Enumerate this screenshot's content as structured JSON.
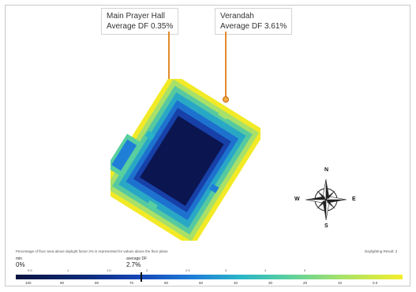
{
  "callouts": {
    "main_hall": {
      "name": "Main Prayer Hall",
      "value": "Average DF 0.35%"
    },
    "veranda": {
      "name": "Verandah",
      "value": "Average DF 3.61%"
    }
  },
  "compass": {
    "n": "N",
    "s": "S",
    "e": "E",
    "w": "W"
  },
  "footer": {
    "caption_left": "Percentage of floor area above daylight factor 2% is represented for values above the floor plane",
    "caption_right": "Daylighting Result: 2",
    "min_label": "min",
    "min_value": "0%",
    "avg_label": "average DF",
    "avg_value": "2.7%"
  },
  "legend": {
    "top_ticks": [
      "0.5",
      "1",
      "1.5",
      "2",
      "2.5",
      "3",
      "4",
      "5"
    ],
    "bottom_ticks": [
      "100",
      "90",
      "80",
      "70",
      "60",
      "50",
      "40",
      "30",
      "20",
      "10",
      "0.0"
    ],
    "colors": {
      "low": "#0a1340",
      "mid": "#1f7fd8",
      "high": "#f4ee2a",
      "accent": "#e38a2c"
    }
  }
}
